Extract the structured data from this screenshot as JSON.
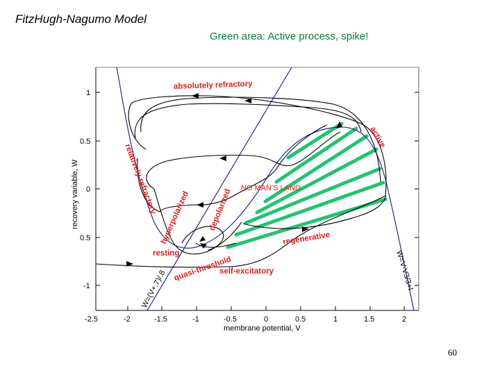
{
  "slide": {
    "title": "FitzHugh-Nagumo Model",
    "subtitle": "Green area: Active process, spike!",
    "page_number": "60"
  },
  "diagram": {
    "x_axis_label": "membrane potential, V",
    "y_axis_label": "recovery variable, W",
    "x_ticks": [
      "-2.5",
      "-2",
      "-1.5",
      "-1",
      "-0.5",
      "0",
      "0.5",
      "1",
      "1.5",
      "2"
    ],
    "y_ticks": [
      "1",
      "0.5",
      "0",
      "0.5",
      "-1"
    ],
    "region_labels": {
      "absolutely_refractory": "absolutely refractory",
      "active": "active",
      "relatively_refractory": "relatively refractory",
      "hyperpolarized": "hyperpolarized",
      "depolarized": "depolarized",
      "no_mans_land": "NO MAN'S LAND",
      "regenerative": "regenerative",
      "resting": "resting",
      "quasi_threshold": "quasi-threshold",
      "self_excitatory": "self-excitatory"
    },
    "nullclines": {
      "w_nullcline": "W=(V+.7)/.8",
      "v_nullcline": "W=V-V3/3+I"
    },
    "colors": {
      "active_area": "#21c46f",
      "region_text": "#e31b1b",
      "nullcline": "#1f2a8a",
      "trajectory": "#000000"
    }
  }
}
